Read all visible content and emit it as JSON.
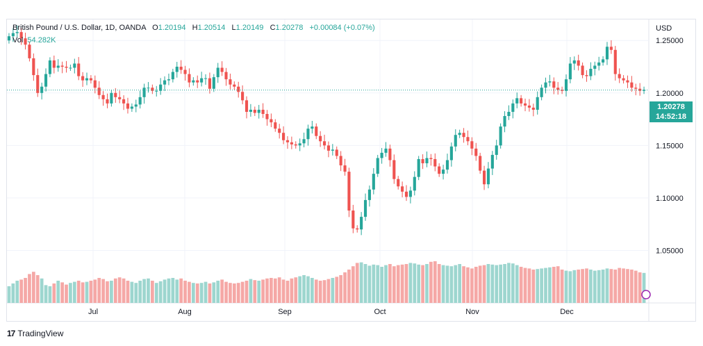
{
  "legend": {
    "symbol": "British Pound / U.S. Dollar, 1D, OANDA",
    "open_label": "O",
    "open": "1.20194",
    "high_label": "H",
    "high": "1.20514",
    "low_label": "L",
    "low": "1.20149",
    "close_label": "C",
    "close": "1.20278",
    "change": "+0.00084 (+0.07%)",
    "vol_label": "Vol",
    "vol": "54.282K"
  },
  "price_axis": {
    "currency": "USD",
    "ticks": [
      "1.25000",
      "1.20000",
      "1.15000",
      "1.10000",
      "1.05000"
    ]
  },
  "last_price": {
    "price": "1.20278",
    "countdown": "14:52:18"
  },
  "time_axis": {
    "labels": [
      "Jul",
      "Aug",
      "Sep",
      "Oct",
      "Nov",
      "Dec"
    ]
  },
  "footer": {
    "brand": "TradingView",
    "logo_text": "17"
  },
  "colors": {
    "up": "#26a69a",
    "down": "#ef5350",
    "up_vol": "#9dd6cf",
    "down_vol": "#f5a8a6",
    "grid": "#f0f3fa"
  },
  "chart_data": {
    "type": "candlestick",
    "y_range": [
      1.0,
      1.27
    ],
    "close_series": [
      1.254,
      1.257,
      1.258,
      1.252,
      1.246,
      1.233,
      1.217,
      1.2,
      1.206,
      1.218,
      1.231,
      1.224,
      1.226,
      1.225,
      1.224,
      1.224,
      1.228,
      1.216,
      1.212,
      1.214,
      1.212,
      1.205,
      1.198,
      1.194,
      1.19,
      1.2,
      1.196,
      1.194,
      1.19,
      1.185,
      1.187,
      1.189,
      1.196,
      1.205,
      1.205,
      1.202,
      1.202,
      1.208,
      1.212,
      1.213,
      1.22,
      1.225,
      1.222,
      1.218,
      1.21,
      1.212,
      1.21,
      1.214,
      1.214,
      1.204,
      1.215,
      1.224,
      1.22,
      1.213,
      1.208,
      1.206,
      1.201,
      1.193,
      1.182,
      1.184,
      1.181,
      1.184,
      1.18,
      1.175,
      1.172,
      1.166,
      1.162,
      1.155,
      1.153,
      1.151,
      1.15,
      1.152,
      1.156,
      1.166,
      1.168,
      1.159,
      1.154,
      1.15,
      1.145,
      1.146,
      1.14,
      1.131,
      1.125,
      1.088,
      1.071,
      1.07,
      1.082,
      1.098,
      1.108,
      1.123,
      1.138,
      1.143,
      1.147,
      1.136,
      1.118,
      1.111,
      1.106,
      1.101,
      1.107,
      1.12,
      1.137,
      1.133,
      1.138,
      1.137,
      1.13,
      1.123,
      1.127,
      1.136,
      1.149,
      1.16,
      1.162,
      1.158,
      1.154,
      1.147,
      1.14,
      1.126,
      1.113,
      1.128,
      1.141,
      1.15,
      1.168,
      1.178,
      1.182,
      1.19,
      1.195,
      1.19,
      1.188,
      1.186,
      1.184,
      1.196,
      1.205,
      1.21,
      1.211,
      1.205,
      1.203,
      1.202,
      1.213,
      1.228,
      1.231,
      1.226,
      1.217,
      1.216,
      1.223,
      1.226,
      1.229,
      1.232,
      1.244,
      1.241,
      1.218,
      1.214,
      1.212,
      1.21,
      1.205,
      1.204,
      1.202,
      1.203
    ],
    "volume_range": [
      0,
      100
    ],
    "volume_series": [
      30,
      35,
      40,
      42,
      45,
      52,
      56,
      50,
      44,
      32,
      30,
      35,
      40,
      37,
      33,
      36,
      38,
      40,
      37,
      38,
      40,
      42,
      45,
      43,
      39,
      40,
      44,
      46,
      44,
      40,
      38,
      36,
      40,
      43,
      44,
      40,
      36,
      39,
      42,
      44,
      45,
      42,
      44,
      40,
      38,
      36,
      35,
      36,
      38,
      35,
      37,
      40,
      42,
      38,
      36,
      35,
      36,
      38,
      40,
      43,
      41,
      40,
      42,
      44,
      45,
      44,
      46,
      42,
      40,
      44,
      46,
      48,
      50,
      48,
      45,
      42,
      40,
      41,
      43,
      45,
      47,
      50,
      55,
      60,
      66,
      72,
      73,
      70,
      67,
      69,
      68,
      65,
      68,
      70,
      66,
      68,
      69,
      70,
      72,
      71,
      69,
      68,
      70,
      74,
      75,
      70,
      68,
      67,
      66,
      68,
      70,
      66,
      64,
      62,
      65,
      67,
      68,
      70,
      69,
      68,
      69,
      70,
      72,
      71,
      68,
      65,
      63,
      62,
      60,
      61,
      62,
      63,
      64,
      65,
      66,
      60,
      58,
      57,
      59,
      60,
      61,
      62,
      60,
      58,
      59,
      60,
      62,
      61,
      60,
      63,
      62,
      61,
      60,
      58,
      55,
      54
    ]
  }
}
